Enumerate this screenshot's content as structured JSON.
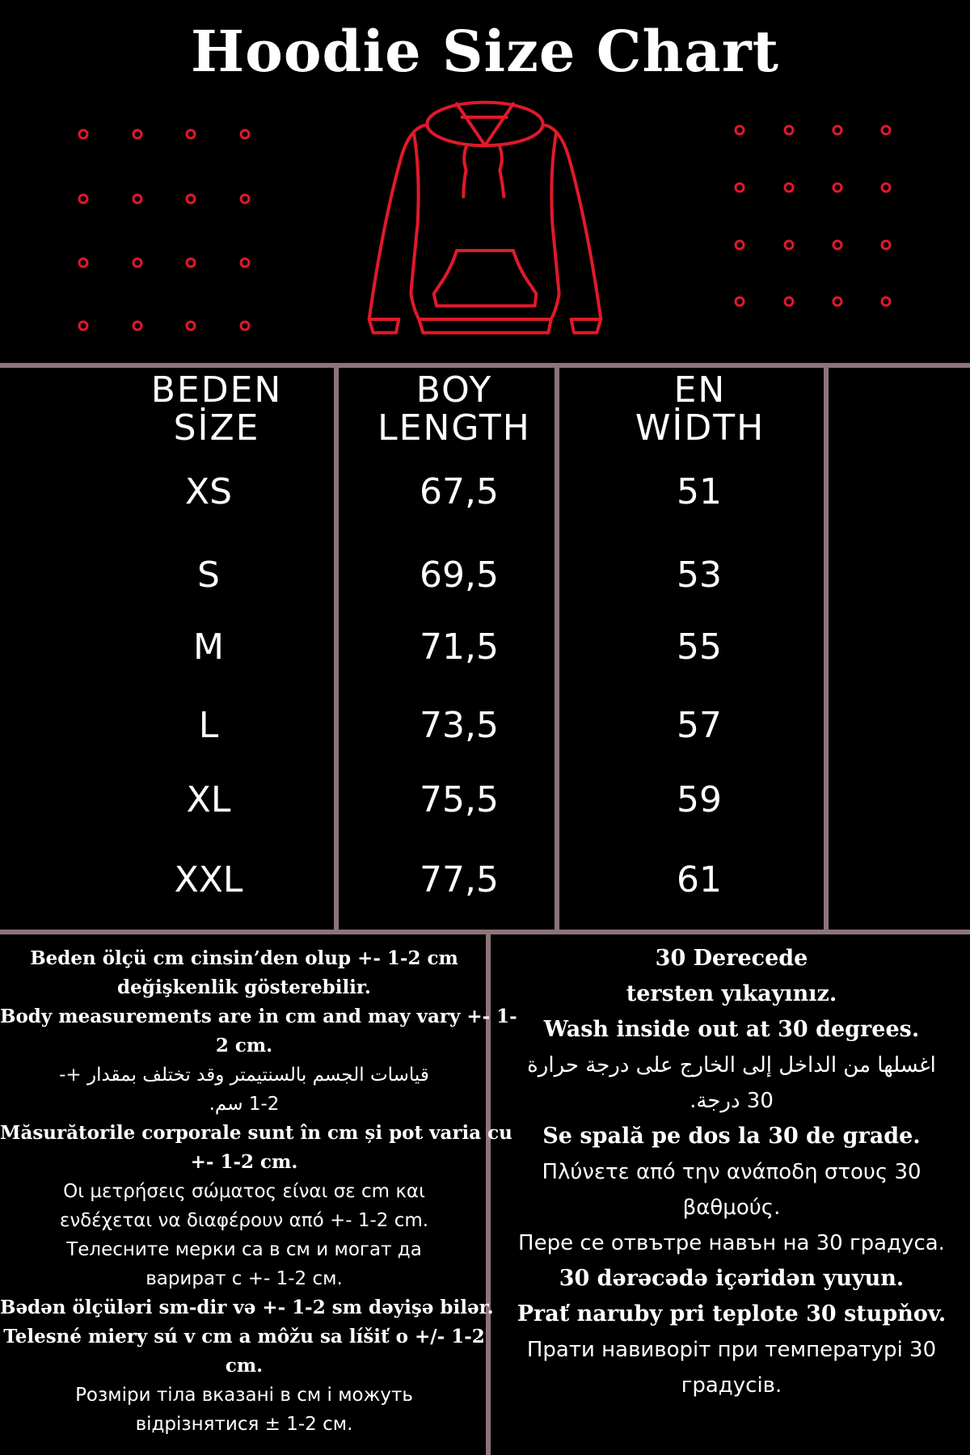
{
  "title": "Hoodie Size Chart",
  "colors": {
    "background": "#000000",
    "accent": "#e0192b",
    "grid": "#8e7478",
    "text": "#ffffff"
  },
  "illustration": "hoodie-icon",
  "table": {
    "headers": [
      {
        "line1": "BEDEN",
        "line2": "SİZE"
      },
      {
        "line1": "BOY",
        "line2": "LENGTH"
      },
      {
        "line1": "EN",
        "line2": "WİDTH"
      }
    ],
    "rows": [
      {
        "size": "XS",
        "length": "67,5",
        "width": "51"
      },
      {
        "size": "S",
        "length": "69,5",
        "width": "53"
      },
      {
        "size": "M",
        "length": "71,5",
        "width": "55"
      },
      {
        "size": "L",
        "length": "73,5",
        "width": "57"
      },
      {
        "size": "XL",
        "length": "75,5",
        "width": "59"
      },
      {
        "size": "XXL",
        "length": "77,5",
        "width": "61"
      }
    ]
  },
  "notes_left": [
    "Beden ölçü cm cinsin’den olup +- 1-2 cm",
    "değişkenlik gösterebilir.",
    "Body measurements are in cm and may vary +- 1-",
    "2 cm.",
    "قياسات الجسم بالسنتيمتر وقد تختلف بمقدار +-",
    "1-2 سم.",
    "Măsurătorile corporale sunt în cm și pot varia cu",
    "+- 1-2 cm.",
    "Οι μετρήσεις σώματος είναι σε cm και",
    "ενδέχεται να διαφέρουν από +- 1-2 cm.",
    "Телесните мерки са в см и могат да",
    "варират с +- 1-2 см.",
    "Bədən ölçüləri sm-dir və +- 1-2 sm dəyişə bilər.",
    "Telesné miery sú v cm a môžu sa líšiť o +/- 1-2",
    "cm.",
    "Розміри тіла вказані в см і можуть",
    "відрізнятися ± 1-2 см."
  ],
  "notes_right": [
    "30 Derecede",
    "tersten yıkayınız.",
    "Wash inside out at 30 degrees.",
    "اغسلها من الداخل إلى الخارج على درجة حرارة",
    "30 درجة.",
    "Se spală pe dos la 30 de grade.",
    "Πλύνετε από την ανάποδη στους 30",
    "βαθμούς.",
    "Пере се отвътре навън на 30 градуса.",
    "30 dərəcədə içəridən yuyun.",
    "Prať naruby pri teplote 30 stupňov.",
    "Прати навиворіт при температурі 30",
    "градусів."
  ]
}
